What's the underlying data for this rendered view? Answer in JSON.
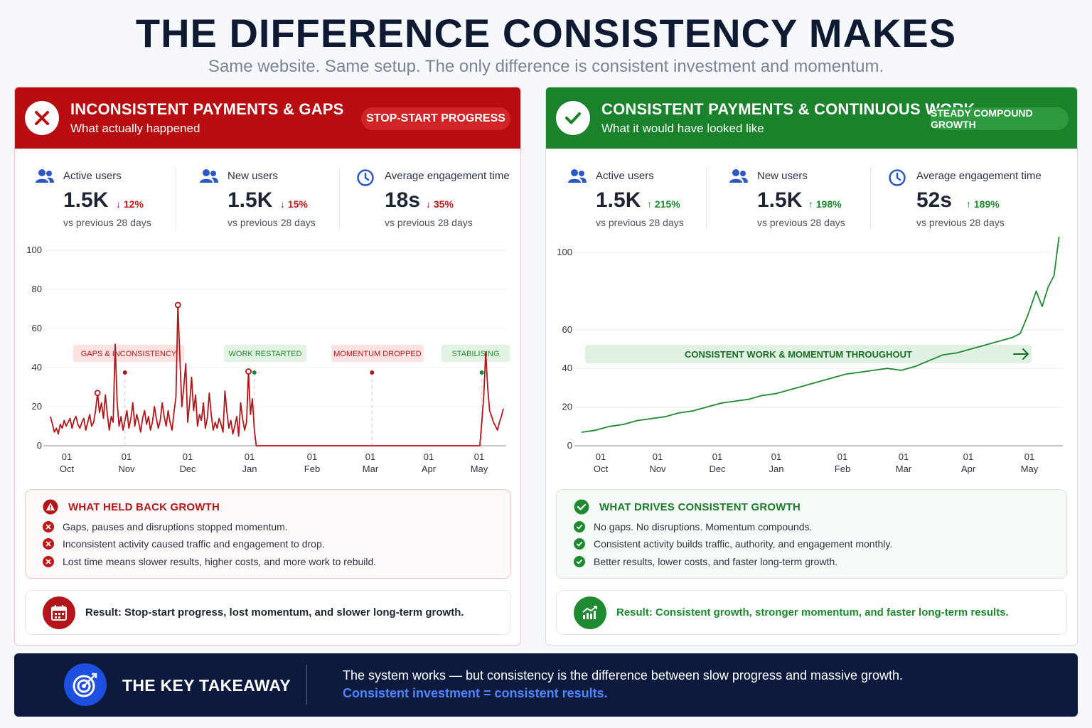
{
  "title": "THE DIFFERENCE CONSISTENCY MAKES",
  "subtitle": "Same website. Same setup. The only difference is consistent investment and momentum.",
  "colors": {
    "red": "#b80d10",
    "green": "#19822b",
    "navy": "#0d1a3d",
    "blue_accent": "#4d86ff"
  },
  "left": {
    "title": "INCONSISTENT PAYMENTS & GAPS",
    "subtitle": "What actually happened",
    "badge": "STOP-START PROGRESS",
    "header_icon": "x-icon",
    "metrics": [
      {
        "icon": "users-icon",
        "label": "Active users",
        "value": "1.5K",
        "change": "12%",
        "direction": "down",
        "note": "vs previous 28 days"
      },
      {
        "icon": "users-icon",
        "label": "New users",
        "value": "1.5K",
        "change": "15%",
        "direction": "down",
        "note": "vs previous 28 days"
      },
      {
        "icon": "clock-icon",
        "label": "Average engagement time",
        "value": "18s",
        "change": "35%",
        "direction": "down",
        "note": "vs previous 28 days"
      }
    ],
    "list_title": "WHAT HELD BACK GROWTH",
    "list_items": [
      "Gaps, pauses and disruptions stopped momentum.",
      "Inconsistent activity caused traffic and engagement to drop.",
      "Lost time means slower results, higher costs, and more work to rebuild."
    ],
    "result": "Result: Stop-start progress, lost momentum, and slower long-term growth."
  },
  "right": {
    "title": "CONSISTENT PAYMENTS & CONTINUOUS WORK",
    "subtitle": "What it would have looked like",
    "badge": "STEADY COMPOUND GROWTH",
    "header_icon": "check-icon",
    "metrics": [
      {
        "icon": "users-icon",
        "label": "Active users",
        "value": "1.5K",
        "change": "215%",
        "direction": "up",
        "note": "vs previous 28 days"
      },
      {
        "icon": "users-icon",
        "label": "New users",
        "value": "1.5K",
        "change": "198%",
        "direction": "up",
        "note": "vs previous 28 days"
      },
      {
        "icon": "clock-icon",
        "label": "Average engagement time",
        "value": "52s",
        "change": "189%",
        "direction": "up",
        "note": "vs previous 28 days"
      }
    ],
    "list_title": "WHAT DRIVES CONSISTENT GROWTH",
    "list_items": [
      "No gaps. No disruptions. Momentum compounds.",
      "Consistent activity builds traffic, authority, and engagement monthly.",
      "Better results, lower costs, and faster long-term growth."
    ],
    "result": "Result: Consistent growth, stronger momentum, and faster long-term results."
  },
  "chart_data": [
    {
      "type": "line",
      "color": "#b3161a",
      "x_ticks": [
        [
          "01",
          "Oct"
        ],
        [
          "01",
          "Nov"
        ],
        [
          "01",
          "Dec"
        ],
        [
          "01",
          "Jan"
        ],
        [
          "01",
          "Feb"
        ],
        [
          "01",
          "Mar"
        ],
        [
          "01",
          "Apr"
        ],
        [
          "01",
          "May"
        ]
      ],
      "y_ticks": [
        0,
        20,
        40,
        60,
        80,
        100
      ],
      "ylim": [
        0,
        100
      ],
      "grid": true,
      "annotations": [
        {
          "label": "GAPS & INCONSISTENCY",
          "tone": "red",
          "date": "2023-11-01"
        },
        {
          "label": "WORK RESTARTED",
          "tone": "green",
          "date": "2024-01-06"
        },
        {
          "label": "MOMENTUM DROPPED",
          "tone": "red",
          "date": "2024-03-06"
        },
        {
          "label": "STABILISING",
          "tone": "green",
          "date": "2024-05-01"
        }
      ],
      "highlights": [
        {
          "date": "2023-10-18",
          "value": 27
        },
        {
          "date": "2023-11-28",
          "value": 72
        },
        {
          "date": "2024-01-03",
          "value": 38
        }
      ],
      "series": [
        {
          "points": [
            [
              "2023-09-24",
              15
            ],
            [
              "2023-09-25",
              11
            ],
            [
              "2023-09-26",
              7
            ],
            [
              "2023-09-27",
              9
            ],
            [
              "2023-09-28",
              6
            ],
            [
              "2023-09-29",
              11
            ],
            [
              "2023-09-30",
              9
            ],
            [
              "2023-10-01",
              13
            ],
            [
              "2023-10-02",
              10
            ],
            [
              "2023-10-03",
              12
            ],
            [
              "2023-10-04",
              14
            ],
            [
              "2023-10-05",
              9
            ],
            [
              "2023-10-06",
              13
            ],
            [
              "2023-10-07",
              15
            ],
            [
              "2023-10-08",
              11
            ],
            [
              "2023-10-09",
              9
            ],
            [
              "2023-10-10",
              12
            ],
            [
              "2023-10-11",
              14
            ],
            [
              "2023-10-12",
              8
            ],
            [
              "2023-10-13",
              12
            ],
            [
              "2023-10-14",
              16
            ],
            [
              "2023-10-15",
              10
            ],
            [
              "2023-10-16",
              12
            ],
            [
              "2023-10-17",
              18
            ],
            [
              "2023-10-18",
              27
            ],
            [
              "2023-10-19",
              17
            ],
            [
              "2023-10-20",
              22
            ],
            [
              "2023-10-21",
              14
            ],
            [
              "2023-10-22",
              26
            ],
            [
              "2023-10-23",
              16
            ],
            [
              "2023-10-24",
              8
            ],
            [
              "2023-10-25",
              15
            ],
            [
              "2023-10-26",
              12
            ],
            [
              "2023-10-27",
              52
            ],
            [
              "2023-10-28",
              22
            ],
            [
              "2023-10-29",
              10
            ],
            [
              "2023-10-30",
              15
            ],
            [
              "2023-10-31",
              8
            ],
            [
              "2023-11-01",
              13
            ],
            [
              "2023-11-02",
              18
            ],
            [
              "2023-11-03",
              9
            ],
            [
              "2023-11-04",
              14
            ],
            [
              "2023-11-05",
              22
            ],
            [
              "2023-11-06",
              10
            ],
            [
              "2023-11-07",
              16
            ],
            [
              "2023-11-08",
              12
            ],
            [
              "2023-11-09",
              7
            ],
            [
              "2023-11-10",
              14
            ],
            [
              "2023-11-11",
              18
            ],
            [
              "2023-11-12",
              11
            ],
            [
              "2023-11-13",
              15
            ],
            [
              "2023-11-14",
              8
            ],
            [
              "2023-11-15",
              12
            ],
            [
              "2023-11-16",
              20
            ],
            [
              "2023-11-17",
              14
            ],
            [
              "2023-11-18",
              9
            ],
            [
              "2023-11-19",
              13
            ],
            [
              "2023-11-20",
              22
            ],
            [
              "2023-11-21",
              15
            ],
            [
              "2023-11-22",
              10
            ],
            [
              "2023-11-23",
              18
            ],
            [
              "2023-11-24",
              12
            ],
            [
              "2023-11-25",
              8
            ],
            [
              "2023-11-26",
              17
            ],
            [
              "2023-11-27",
              25
            ],
            [
              "2023-11-28",
              72
            ],
            [
              "2023-11-29",
              45
            ],
            [
              "2023-11-30",
              20
            ],
            [
              "2023-12-01",
              30
            ],
            [
              "2023-12-02",
              42
            ],
            [
              "2023-12-03",
              12
            ],
            [
              "2023-12-04",
              22
            ],
            [
              "2023-12-05",
              35
            ],
            [
              "2023-12-06",
              18
            ],
            [
              "2023-12-07",
              26
            ],
            [
              "2023-12-08",
              10
            ],
            [
              "2023-12-09",
              16
            ],
            [
              "2023-12-10",
              13
            ],
            [
              "2023-12-11",
              22
            ],
            [
              "2023-12-12",
              9
            ],
            [
              "2023-12-13",
              14
            ],
            [
              "2023-12-14",
              27
            ],
            [
              "2023-12-15",
              16
            ],
            [
              "2023-12-16",
              8
            ],
            [
              "2023-12-17",
              12
            ],
            [
              "2023-12-18",
              9
            ],
            [
              "2023-12-19",
              14
            ],
            [
              "2023-12-20",
              11
            ],
            [
              "2023-12-21",
              7
            ],
            [
              "2023-12-22",
              28
            ],
            [
              "2023-12-23",
              17
            ],
            [
              "2023-12-24",
              9
            ],
            [
              "2023-12-25",
              13
            ],
            [
              "2023-12-26",
              6
            ],
            [
              "2023-12-27",
              10
            ],
            [
              "2023-12-28",
              15
            ],
            [
              "2023-12-29",
              5
            ],
            [
              "2023-12-30",
              22
            ],
            [
              "2023-12-31",
              14
            ],
            [
              "2024-01-01",
              8
            ],
            [
              "2024-01-02",
              12
            ],
            [
              "2024-01-03",
              38
            ],
            [
              "2024-01-04",
              16
            ],
            [
              "2024-01-05",
              24
            ],
            [
              "2024-01-06",
              8
            ],
            [
              "2024-01-07",
              0
            ],
            [
              "2024-04-30",
              0
            ],
            [
              "2024-05-01",
              12
            ],
            [
              "2024-05-02",
              25
            ],
            [
              "2024-05-03",
              48
            ],
            [
              "2024-05-04",
              30
            ],
            [
              "2024-05-05",
              18
            ],
            [
              "2024-05-06",
              15
            ],
            [
              "2024-05-07",
              12
            ],
            [
              "2024-05-08",
              10
            ],
            [
              "2024-05-09",
              8
            ],
            [
              "2024-05-10",
              12
            ],
            [
              "2024-05-11",
              15
            ],
            [
              "2024-05-12",
              19
            ]
          ]
        }
      ]
    },
    {
      "type": "line",
      "color": "#1f8a31",
      "x_ticks": [
        [
          "01",
          "Oct"
        ],
        [
          "01",
          "Nov"
        ],
        [
          "01",
          "Dec"
        ],
        [
          "01",
          "Jan"
        ],
        [
          "01",
          "Feb"
        ],
        [
          "01",
          "Mar"
        ],
        [
          "01",
          "Apr"
        ],
        [
          "01",
          "May"
        ]
      ],
      "y_ticks": [
        0,
        20,
        40,
        60,
        100
      ],
      "grid": true,
      "banner": "CONSISTENT WORK & MOMENTUM THROUGHOUT",
      "series": [
        {
          "points": [
            [
              "2023-09-24",
              7
            ],
            [
              "2023-10-01",
              8
            ],
            [
              "2023-10-08",
              10
            ],
            [
              "2023-10-15",
              11
            ],
            [
              "2023-10-22",
              13
            ],
            [
              "2023-10-29",
              14
            ],
            [
              "2023-11-05",
              15
            ],
            [
              "2023-11-12",
              17
            ],
            [
              "2023-11-19",
              18
            ],
            [
              "2023-11-26",
              20
            ],
            [
              "2023-12-03",
              22
            ],
            [
              "2023-12-10",
              23
            ],
            [
              "2023-12-17",
              24
            ],
            [
              "2023-12-24",
              26
            ],
            [
              "2023-12-31",
              27
            ],
            [
              "2024-01-07",
              29
            ],
            [
              "2024-01-14",
              31
            ],
            [
              "2024-01-21",
              33
            ],
            [
              "2024-01-28",
              35
            ],
            [
              "2024-02-04",
              37
            ],
            [
              "2024-02-11",
              38
            ],
            [
              "2024-02-18",
              39
            ],
            [
              "2024-02-25",
              40
            ],
            [
              "2024-03-03",
              39
            ],
            [
              "2024-03-10",
              41
            ],
            [
              "2024-03-17",
              44
            ],
            [
              "2024-03-24",
              47
            ],
            [
              "2024-03-31",
              48
            ],
            [
              "2024-04-07",
              50
            ],
            [
              "2024-04-14",
              52
            ],
            [
              "2024-04-21",
              54
            ],
            [
              "2024-04-28",
              56
            ],
            [
              "2024-05-02",
              58
            ],
            [
              "2024-05-06",
              68
            ],
            [
              "2024-05-10",
              80
            ],
            [
              "2024-05-13",
              72
            ],
            [
              "2024-05-16",
              82
            ],
            [
              "2024-05-19",
              88
            ],
            [
              "2024-05-22",
              112
            ]
          ]
        }
      ]
    }
  ],
  "takeaway": {
    "title": "THE KEY TAKEAWAY",
    "icon": "target-icon",
    "line1": "The system works — but consistency is the difference between slow progress and massive growth.",
    "line2": "Consistent investment = consistent results."
  }
}
